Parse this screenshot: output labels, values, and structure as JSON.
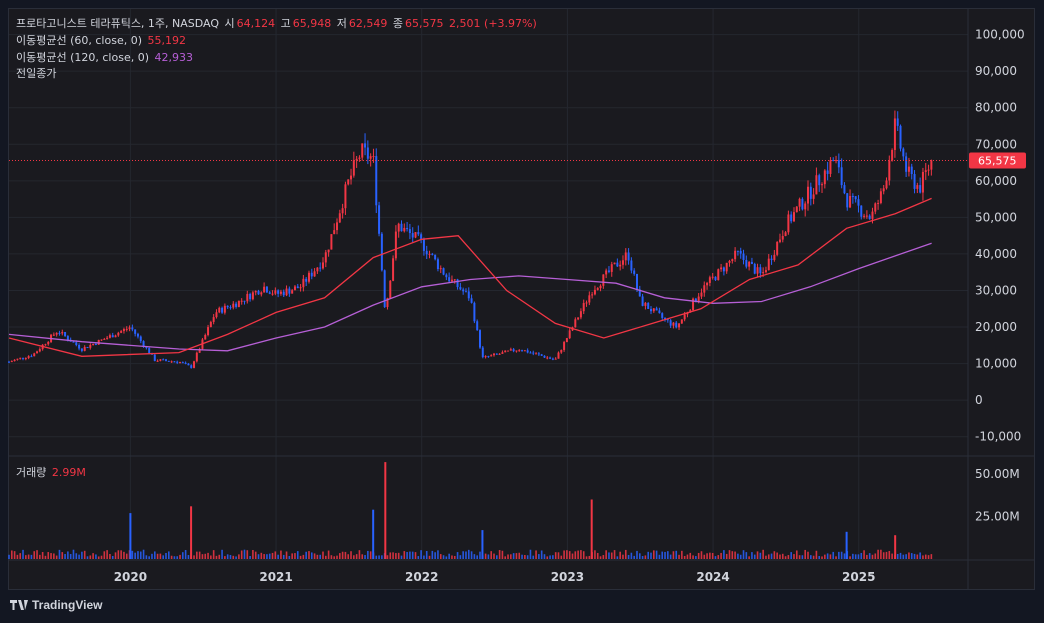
{
  "header": {
    "symbol_line": "프로타고니스트 테라퓨틱스, 1주, NASDAQ",
    "open_label": "시",
    "open": "64,124",
    "high_label": "고",
    "high": "65,948",
    "low_label": "저",
    "low": "62,549",
    "close_label": "종",
    "close": "65,575",
    "change": "2,501 (+3.97%)"
  },
  "indicators": [
    {
      "label": "이동평균선 (60, close, 0)",
      "value": "55,192",
      "color": "#f23645"
    },
    {
      "label": "이동평균선 (120, close, 0)",
      "value": "42,933",
      "color": "#b65fd6"
    },
    {
      "label": "전일종가",
      "value": ""
    }
  ],
  "volume_legend": {
    "label": "거래량",
    "value": "2.99M"
  },
  "price_tag": "65,575",
  "branding": "TradingView",
  "colors": {
    "up": "#f23645",
    "down": "#2962ff",
    "ma60": "#f23645",
    "ma120": "#b65fd6",
    "background": "#1a1a1f"
  },
  "chart_data": {
    "type": "candlestick",
    "price_axis": {
      "ylim": [
        -15000,
        107000
      ],
      "ticks": [
        100000,
        90000,
        80000,
        70000,
        60000,
        50000,
        40000,
        30000,
        20000,
        10000,
        0,
        -10000
      ],
      "tick_labels": [
        "100,000",
        "90,000",
        "80,000",
        "70,000",
        "60,000",
        "50,000",
        "40,000",
        "30,000",
        "20,000",
        "10,000",
        "0",
        "-10,000"
      ]
    },
    "volume_axis": {
      "ylim": [
        0,
        60000000
      ],
      "ticks": [
        50000000,
        25000000
      ],
      "tick_labels": [
        "50.00M",
        "25.00M"
      ]
    },
    "x_axis": {
      "range": [
        "2019-03",
        "2025-10"
      ],
      "ticks": [
        "2020",
        "2021",
        "2022",
        "2023",
        "2024",
        "2025"
      ]
    },
    "last_close_line": 65575,
    "price_path": [
      [
        "2019-03",
        10500
      ],
      [
        "2019-05",
        12500
      ],
      [
        "2019-07",
        19000
      ],
      [
        "2019-09",
        14000
      ],
      [
        "2019-11",
        17000
      ],
      [
        "2020-01",
        20000
      ],
      [
        "2020-03",
        11000
      ],
      [
        "2020-05",
        10500
      ],
      [
        "2020-06",
        9000
      ],
      [
        "2020-08",
        24000
      ],
      [
        "2020-10",
        27000
      ],
      [
        "2020-12",
        31000
      ],
      [
        "2021-01",
        29000
      ],
      [
        "2021-03",
        31000
      ],
      [
        "2021-05",
        39000
      ],
      [
        "2021-07",
        60000
      ],
      [
        "2021-08",
        68000
      ],
      [
        "2021-09",
        66000
      ],
      [
        "2021-10",
        24000
      ],
      [
        "2021-11",
        48000
      ],
      [
        "2022-01",
        43000
      ],
      [
        "2022-03",
        34000
      ],
      [
        "2022-05",
        28000
      ],
      [
        "2022-06",
        11500
      ],
      [
        "2022-09",
        14000
      ],
      [
        "2022-12",
        11000
      ],
      [
        "2023-03",
        30000
      ],
      [
        "2023-05",
        37000
      ],
      [
        "2023-06",
        40000
      ],
      [
        "2023-07",
        27000
      ],
      [
        "2023-09",
        22000
      ],
      [
        "2023-10",
        20000
      ],
      [
        "2023-12",
        30000
      ],
      [
        "2024-03",
        40000
      ],
      [
        "2024-05",
        34000
      ],
      [
        "2024-07",
        48000
      ],
      [
        "2024-09",
        57000
      ],
      [
        "2024-11",
        66000
      ],
      [
        "2024-12",
        55000
      ],
      [
        "2025-02",
        50000
      ],
      [
        "2025-03",
        57000
      ],
      [
        "2025-04",
        75000
      ],
      [
        "2025-05",
        62000
      ],
      [
        "2025-06",
        58000
      ],
      [
        "2025-07",
        65575
      ]
    ],
    "ma60": [
      [
        "2019-03",
        17000
      ],
      [
        "2019-09",
        12000
      ],
      [
        "2020-05",
        13000
      ],
      [
        "2020-09",
        18000
      ],
      [
        "2021-01",
        24000
      ],
      [
        "2021-05",
        28000
      ],
      [
        "2021-09",
        39000
      ],
      [
        "2022-01",
        44000
      ],
      [
        "2022-04",
        45000
      ],
      [
        "2022-08",
        30000
      ],
      [
        "2022-12",
        21000
      ],
      [
        "2023-04",
        17000
      ],
      [
        "2023-08",
        21000
      ],
      [
        "2023-12",
        25000
      ],
      [
        "2024-04",
        33000
      ],
      [
        "2024-08",
        37000
      ],
      [
        "2024-12",
        47000
      ],
      [
        "2025-04",
        51000
      ],
      [
        "2025-07",
        55192
      ]
    ],
    "ma120": [
      [
        "2019-03",
        18000
      ],
      [
        "2019-09",
        16000
      ],
      [
        "2020-05",
        14000
      ],
      [
        "2020-09",
        13500
      ],
      [
        "2021-01",
        17000
      ],
      [
        "2021-05",
        20000
      ],
      [
        "2021-09",
        26000
      ],
      [
        "2022-01",
        31000
      ],
      [
        "2022-05",
        33000
      ],
      [
        "2022-09",
        34000
      ],
      [
        "2023-01",
        33000
      ],
      [
        "2023-05",
        32000
      ],
      [
        "2023-09",
        28000
      ],
      [
        "2024-01",
        26500
      ],
      [
        "2024-05",
        27000
      ],
      [
        "2024-09",
        31000
      ],
      [
        "2025-01",
        36000
      ],
      [
        "2025-07",
        42933
      ]
    ],
    "volume_spikes": [
      [
        "2020-01",
        27000000
      ],
      [
        "2020-06",
        31000000
      ],
      [
        "2021-09",
        29000000
      ],
      [
        "2021-10",
        57000000
      ],
      [
        "2022-06",
        17000000
      ],
      [
        "2023-03",
        35000000
      ],
      [
        "2024-12",
        16000000
      ],
      [
        "2025-04",
        14000000
      ]
    ]
  }
}
